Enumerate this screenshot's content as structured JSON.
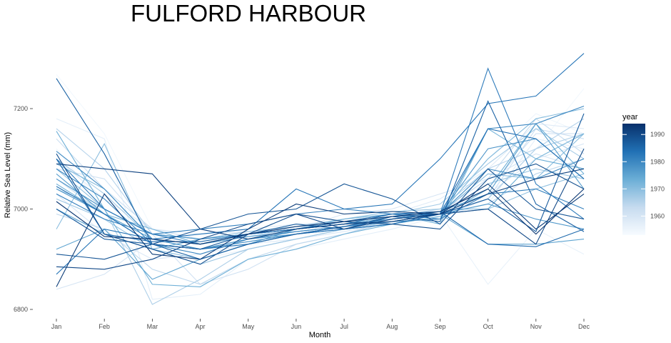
{
  "chart_data": {
    "type": "line",
    "title": "FULFORD HARBOUR",
    "xlabel": "Month",
    "ylabel": "Relative Sea Level (mm)",
    "categories": [
      "Jan",
      "Feb",
      "Mar",
      "Apr",
      "May",
      "Jun",
      "Jul",
      "Aug",
      "Sep",
      "Oct",
      "Nov",
      "Dec"
    ],
    "y_ticks": [
      6800,
      7000,
      7200
    ],
    "ylim": [
      6790,
      7340
    ],
    "grid": false,
    "legend": {
      "title": "year",
      "placement": "right",
      "type": "colorbar",
      "range": [
        1953,
        1994
      ],
      "ticks": [
        1960,
        1970,
        1980,
        1990
      ],
      "color_low": "#f7fbff",
      "color_high": "#08306b"
    },
    "series": [
      {
        "year": 1954,
        "values": [
          7268,
          7150,
          6960,
          6930,
          6940,
          6960,
          6975,
          6990,
          7010,
          7050,
          7120,
          7240
        ]
      },
      {
        "year": 1955,
        "values": [
          7120,
          7000,
          6950,
          6940,
          6950,
          6955,
          6970,
          6985,
          7000,
          7100,
          7190,
          7150
        ]
      },
      {
        "year": 1956,
        "values": [
          7050,
          6990,
          6930,
          6900,
          6920,
          6940,
          6960,
          6970,
          6990,
          6850,
          6960,
          6910
        ]
      },
      {
        "year": 1957,
        "values": [
          7180,
          7140,
          6820,
          6830,
          6900,
          6920,
          6940,
          6960,
          6985,
          7010,
          7140,
          7120
        ]
      },
      {
        "year": 1958,
        "values": [
          7100,
          7020,
          6960,
          6950,
          6960,
          6970,
          6975,
          6990,
          7020,
          7080,
          7170,
          7160
        ]
      },
      {
        "year": 1959,
        "values": [
          7030,
          6950,
          6900,
          6910,
          6930,
          6940,
          6955,
          6975,
          6990,
          7030,
          7100,
          7130
        ]
      },
      {
        "year": 1960,
        "values": [
          6840,
          6870,
          6940,
          6950,
          6955,
          6960,
          6990,
          7000,
          7030,
          7060,
          7110,
          7080
        ]
      },
      {
        "year": 1961,
        "values": [
          7080,
          7060,
          6950,
          6850,
          6880,
          6930,
          6950,
          6980,
          7000,
          7040,
          7150,
          7150
        ]
      },
      {
        "year": 1962,
        "values": [
          7140,
          7040,
          6960,
          6940,
          6950,
          6965,
          6980,
          6990,
          6985,
          7020,
          7160,
          7140
        ]
      },
      {
        "year": 1963,
        "values": [
          7060,
          6990,
          6930,
          6920,
          6940,
          6950,
          6965,
          6980,
          6995,
          7060,
          7180,
          7110
        ]
      },
      {
        "year": 1964,
        "values": [
          6990,
          6960,
          6880,
          6850,
          6900,
          6930,
          6950,
          6975,
          6990,
          7010,
          7070,
          7100
        ]
      },
      {
        "year": 1965,
        "values": [
          7160,
          7080,
          6950,
          6940,
          6945,
          6960,
          6975,
          6985,
          7000,
          7080,
          7120,
          7180
        ]
      },
      {
        "year": 1966,
        "values": [
          7040,
          7000,
          6810,
          6860,
          6920,
          6940,
          6960,
          6970,
          6990,
          7020,
          7120,
          7150
        ]
      },
      {
        "year": 1967,
        "values": [
          7100,
          7030,
          6940,
          6930,
          6950,
          6960,
          6970,
          6990,
          7010,
          7090,
          7160,
          7100
        ]
      },
      {
        "year": 1968,
        "values": [
          7020,
          6980,
          6920,
          6890,
          6920,
          6940,
          6960,
          6975,
          6990,
          7050,
          7080,
          7060
        ]
      },
      {
        "year": 1969,
        "values": [
          7080,
          7000,
          6950,
          6940,
          6955,
          6965,
          6980,
          6995,
          7000,
          7000,
          7040,
          7070
        ]
      },
      {
        "year": 1970,
        "values": [
          6960,
          7130,
          6920,
          6900,
          6930,
          6950,
          6965,
          6980,
          6990,
          7070,
          7060,
          7150
        ]
      },
      {
        "year": 1971,
        "values": [
          7090,
          7040,
          6940,
          6920,
          6940,
          6960,
          6970,
          6985,
          6990,
          7100,
          7180,
          7200
        ]
      },
      {
        "year": 1972,
        "values": [
          7050,
          6990,
          6960,
          6930,
          6950,
          6960,
          6980,
          6990,
          6970,
          7160,
          7100,
          7150
        ]
      },
      {
        "year": 1973,
        "values": [
          7155,
          7000,
          6850,
          6845,
          6900,
          6920,
          6950,
          6970,
          6985,
          7040,
          7170,
          7070
        ]
      },
      {
        "year": 1974,
        "values": [
          7000,
          6950,
          6920,
          6940,
          6950,
          6960,
          6970,
          6980,
          6990,
          7000,
          7100,
          7080
        ]
      },
      {
        "year": 1975,
        "values": [
          6920,
          6960,
          6860,
          6900,
          6930,
          6960,
          6975,
          6985,
          6990,
          6930,
          6930,
          6940
        ]
      },
      {
        "year": 1976,
        "values": [
          7070,
          6990,
          6940,
          6930,
          6945,
          6955,
          6965,
          6980,
          6995,
          7030,
          7170,
          7040
        ]
      },
      {
        "year": 1977,
        "values": [
          7040,
          6990,
          6930,
          6920,
          6940,
          6950,
          6960,
          6970,
          6990,
          7010,
          6980,
          6960
        ]
      },
      {
        "year": 1978,
        "values": [
          7060,
          7000,
          6950,
          6940,
          6950,
          6960,
          6970,
          6980,
          6990,
          7120,
          7140,
          7060
        ]
      },
      {
        "year": 1979,
        "values": [
          7115,
          7040,
          6940,
          6920,
          6935,
          6950,
          6965,
          6975,
          6990,
          7080,
          7060,
          7100
        ]
      },
      {
        "year": 1980,
        "values": [
          7080,
          7020,
          6930,
          6910,
          6940,
          6955,
          6965,
          6975,
          6980,
          7160,
          7170,
          7205
        ]
      },
      {
        "year": 1981,
        "values": [
          7030,
          6980,
          6950,
          6960,
          6970,
          6990,
          7000,
          6990,
          6980,
          7030,
          7040,
          7000
        ]
      },
      {
        "year": 1982,
        "values": [
          7100,
          7000,
          6950,
          6930,
          6950,
          6960,
          6970,
          6990,
          6990,
          7280,
          7050,
          6980
        ]
      },
      {
        "year": 1983,
        "values": [
          6870,
          6960,
          6940,
          6950,
          6960,
          7040,
          7000,
          7010,
          7100,
          7210,
          7225,
          7310
        ]
      },
      {
        "year": 1984,
        "values": [
          7045,
          6990,
          6930,
          6920,
          6930,
          6950,
          6960,
          6970,
          6990,
          7160,
          7140,
          7060
        ]
      },
      {
        "year": 1985,
        "values": [
          7100,
          6950,
          6935,
          6935,
          6950,
          6960,
          6975,
          6990,
          6995,
          6930,
          6925,
          6960
        ]
      },
      {
        "year": 1986,
        "values": [
          7260,
          7110,
          6930,
          6900,
          6930,
          6950,
          6965,
          6985,
          6975,
          7215,
          7010,
          6955
        ]
      },
      {
        "year": 1987,
        "values": [
          7000,
          6940,
          6930,
          6920,
          6950,
          6970,
          6960,
          6985,
          6990,
          7020,
          6955,
          7190
        ]
      },
      {
        "year": 1988,
        "values": [
          6910,
          6900,
          6930,
          6960,
          6990,
          7000,
          7050,
          7020,
          6970,
          7080,
          7000,
          6980
        ]
      },
      {
        "year": 1989,
        "values": [
          7110,
          6950,
          6920,
          6890,
          6950,
          6990,
          6975,
          6970,
          6960,
          7060,
          7090,
          7040
        ]
      },
      {
        "year": 1990,
        "values": [
          6885,
          6880,
          6900,
          6940,
          6970,
          6990,
          6960,
          6980,
          6990,
          7000,
          6930,
          7120
        ]
      },
      {
        "year": 1991,
        "values": [
          7090,
          7080,
          7070,
          6960,
          6940,
          6960,
          6970,
          6975,
          6990,
          7030,
          7060,
          7080
        ]
      },
      {
        "year": 1992,
        "values": [
          6845,
          7030,
          6910,
          6900,
          6960,
          7010,
          6990,
          6995,
          6990,
          7050,
          6960,
          7030
        ]
      },
      {
        "year": 1993,
        "values": [
          7015,
          6945,
          6940,
          6930,
          6950,
          6965,
          6975,
          6985,
          6995,
          7040,
          6950,
          7040
        ]
      }
    ]
  }
}
